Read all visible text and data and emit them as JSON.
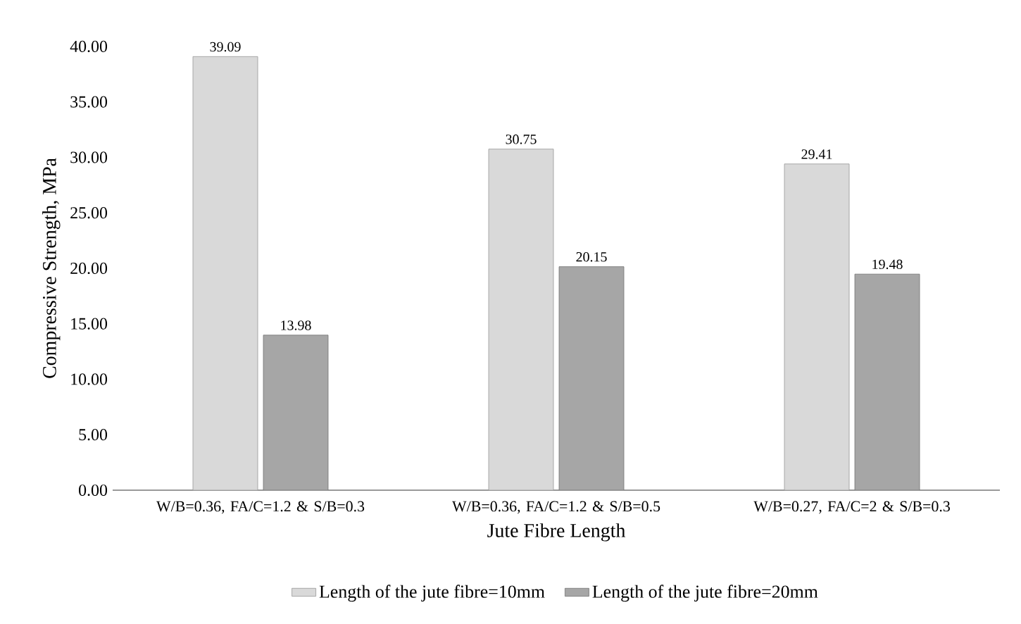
{
  "chart_data": {
    "type": "bar",
    "xlabel": "Jute Fibre Length",
    "ylabel": "Compressive Strength, MPa",
    "categories": [
      "W/B=0.36, FA/C=1.2 & S/B=0.3",
      "W/B=0.36, FA/C=1.2 & S/B=0.5",
      "W/B=0.27, FA/C=2 & S/B=0.3"
    ],
    "series": [
      {
        "name": "Length of the jute fibre=10mm",
        "color": "#d9d9d9",
        "values": [
          39.09,
          30.75,
          29.41
        ]
      },
      {
        "name": "Length of the jute fibre=20mm",
        "color": "#a6a6a6",
        "values": [
          13.98,
          20.15,
          19.48
        ]
      }
    ],
    "ylim": [
      0,
      40
    ],
    "yticks": [
      {
        "value": 0,
        "label": "0.00"
      },
      {
        "value": 5,
        "label": "5.00"
      },
      {
        "value": 10,
        "label": "10.00"
      },
      {
        "value": 15,
        "label": "15.00"
      },
      {
        "value": 20,
        "label": "20.00"
      },
      {
        "value": 25,
        "label": "25.00"
      },
      {
        "value": 30,
        "label": "30.00"
      },
      {
        "value": 35,
        "label": "35.00"
      },
      {
        "value": 40,
        "label": "40.00"
      }
    ],
    "data_labels": true,
    "grid": false,
    "legend": "bottom"
  }
}
